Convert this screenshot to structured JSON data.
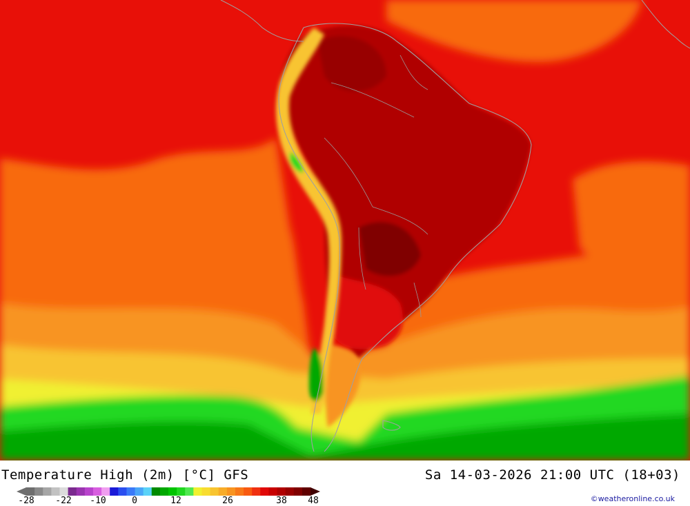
{
  "title": "Temperature High (2m) [°C] GFS",
  "datetime": "Sa 14-03-2026 21:00 UTC (18+03)",
  "credit": "©weatheronline.co.uk",
  "legend": {
    "ticks": [
      "-28",
      "-22",
      "-10",
      "0",
      "12",
      "26",
      "38",
      "48"
    ],
    "colors": [
      "#6e6e6e",
      "#8a8a8a",
      "#a6a6a6",
      "#c2c2c2",
      "#dcdcdc",
      "#7b2a8f",
      "#9a34b0",
      "#b843cc",
      "#d85ee0",
      "#f09ef0",
      "#1a1ad8",
      "#2a4ef0",
      "#3a7af8",
      "#4aa6f8",
      "#5ad2f8",
      "#008a00",
      "#00a800",
      "#00c400",
      "#20d820",
      "#50e850",
      "#f0f030",
      "#f8dc30",
      "#f8c430",
      "#f8ac28",
      "#f89420",
      "#f87818",
      "#f85a10",
      "#f03010",
      "#e00808",
      "#c80000",
      "#b00000",
      "#980000",
      "#800000",
      "#600000"
    ],
    "arrow_left_color": "#6e6e6e",
    "arrow_right_color": "#400000"
  }
}
